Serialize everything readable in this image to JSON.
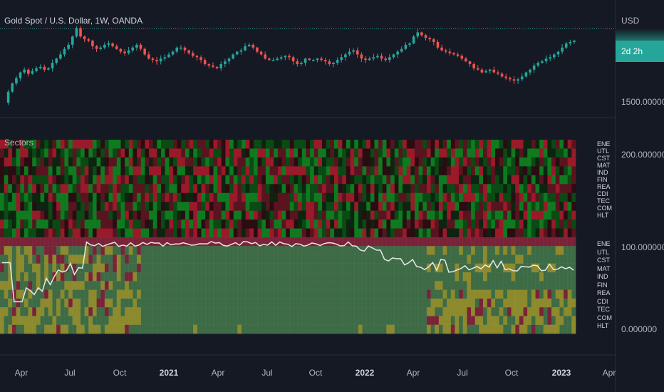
{
  "header": {
    "title": "Gold Spot / U.S. Dollar, 1W, OANDA",
    "currency": "USD",
    "countdown": "2d 2h"
  },
  "price_axis": {
    "label_low": "1500.000000"
  },
  "indicator": {
    "name": "Sectors",
    "axis_labels": [
      "200.000000",
      "100.000000",
      "0.000000"
    ],
    "sectors": [
      "ENE",
      "UTL",
      "CST",
      "MAT",
      "IND",
      "FIN",
      "REA",
      "CDI",
      "TEC",
      "COM",
      "HLT"
    ]
  },
  "time_axis": {
    "ticks": [
      {
        "label": "Apr",
        "bold": false
      },
      {
        "label": "Jul",
        "bold": false
      },
      {
        "label": "Oct",
        "bold": false
      },
      {
        "label": "2021",
        "bold": true
      },
      {
        "label": "Apr",
        "bold": false
      },
      {
        "label": "Jul",
        "bold": false
      },
      {
        "label": "Oct",
        "bold": false
      },
      {
        "label": "2022",
        "bold": true
      },
      {
        "label": "Apr",
        "bold": false
      },
      {
        "label": "Jul",
        "bold": false
      },
      {
        "label": "Oct",
        "bold": false
      },
      {
        "label": "2023",
        "bold": true
      },
      {
        "label": "Apr",
        "bold": false
      }
    ]
  },
  "colors": {
    "background": "#151924",
    "up": "#26a69a",
    "down": "#ef5350",
    "line": "#e8e8e8",
    "zone_green": "#3d6b45",
    "zone_yellow": "#8c8a2c",
    "zone_red": "#7a2338"
  },
  "chart_data": {
    "type": "candlestick",
    "series": [
      {
        "name": "Gold Spot / U.S. Dollar",
        "type": "candlestick"
      },
      {
        "name": "Sectors",
        "type": "heatmap+line",
        "ylim": [
          0,
          200
        ]
      }
    ]
  }
}
